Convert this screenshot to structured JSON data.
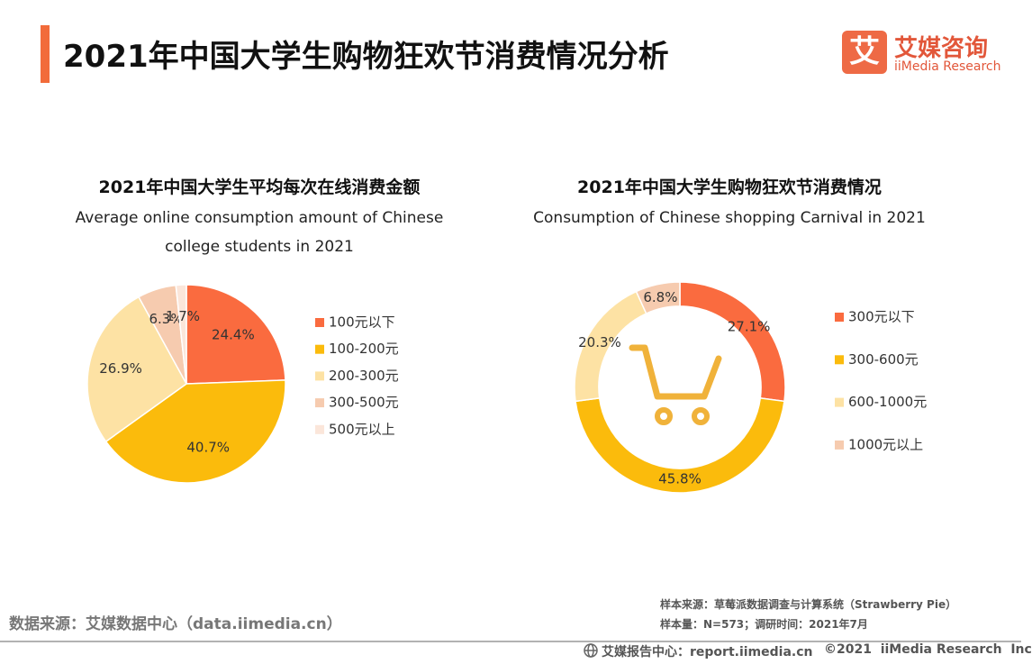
{
  "header": {
    "title": "2021年中国大学生购物狂欢节消费情况分析",
    "logo_icon": "艾",
    "logo_cn": "艾媒咨询",
    "logo_en": "iiMedia Research"
  },
  "chart_data": [
    {
      "type": "pie",
      "title": "2021年中国大学生平均每次在线消费金额",
      "subtitle": "Average online consumption amount of Chinese college students in 2021",
      "categories": [
        "100元以下",
        "100-200元",
        "200-300元",
        "300-500元",
        "500元以上"
      ],
      "values": [
        24.4,
        40.7,
        26.9,
        6.3,
        1.7
      ],
      "value_labels": [
        "24.4%",
        "40.7%",
        "26.9%",
        "6.3%",
        "1.7%"
      ],
      "colors": [
        "#fa6b3f",
        "#fbbb0c",
        "#fde2a4",
        "#f6cbaf",
        "#fbe6da"
      ],
      "legend": "right"
    },
    {
      "type": "donut",
      "title": "2021年中国大学生购物狂欢节消费情况",
      "subtitle": "Consumption of Chinese shopping Carnival in 2021",
      "categories": [
        "300元以下",
        "300-600元",
        "600-1000元",
        "1000元以上"
      ],
      "values": [
        27.1,
        45.8,
        20.3,
        6.8
      ],
      "value_labels": [
        "27.1%",
        "45.8%",
        "20.3%",
        "6.8%"
      ],
      "colors": [
        "#fa6b3f",
        "#fbbb0c",
        "#fde2a4",
        "#f6cbaf"
      ],
      "legend": "right"
    }
  ],
  "footer": {
    "source": "数据来源：艾媒数据中心（data.iimedia.cn）",
    "sample_source": "样本来源：草莓派数据调查与计算系统（Strawberry Pie）",
    "sample_size": "样本量：N=573；调研时间：2021年7月",
    "report_center": "艾媒报告中心：report.iimedia.cn",
    "copyright": "©2021  iiMedia Research  Inc"
  }
}
